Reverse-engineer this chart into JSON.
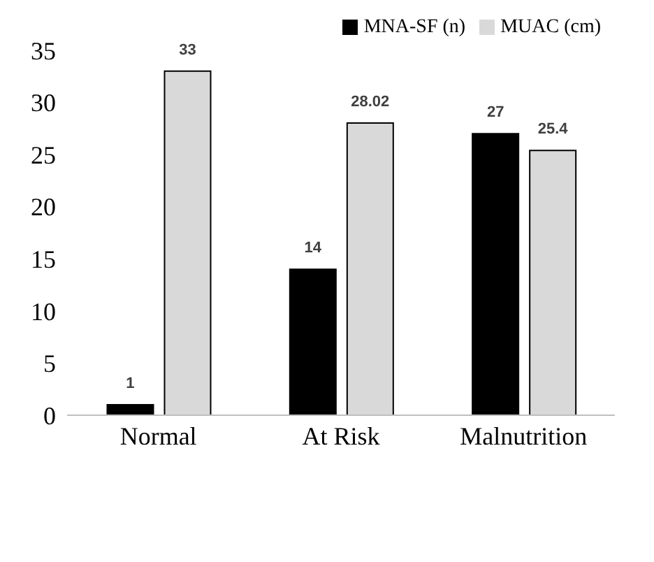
{
  "chart_data": {
    "type": "bar",
    "categories": [
      "Normal",
      "At Risk",
      "Malnutrition"
    ],
    "series": [
      {
        "name": "MNA-SF (n)",
        "color": "#000000",
        "values": [
          1,
          14,
          27
        ]
      },
      {
        "name": "MUAC (cm)",
        "color": "#d9d9d9",
        "values": [
          33,
          28.02,
          25.4
        ]
      }
    ],
    "ylim": [
      0,
      35
    ],
    "yticks": [
      0,
      5,
      10,
      15,
      20,
      25,
      30,
      35
    ],
    "data_labels": true,
    "legend": "top right",
    "grid": false
  }
}
